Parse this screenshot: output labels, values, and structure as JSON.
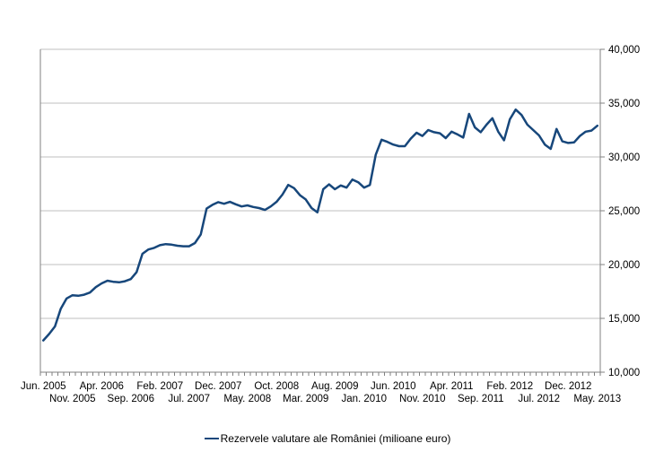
{
  "chart_data": {
    "type": "line",
    "title": "",
    "legend_position": "bottom",
    "grid": true,
    "colors": {
      "series": "#17477B",
      "gridline": "#BFBFBF",
      "axis": "#808080",
      "text": "#000000",
      "background": "#FFFFFF"
    },
    "y_axis": {
      "side": "right",
      "min": 10000,
      "max": 40000,
      "step": 5000,
      "tick_labels": [
        "10,000",
        "15,000",
        "20,000",
        "25,000",
        "30,000",
        "35,000",
        "40,000"
      ]
    },
    "x_axis": {
      "start_month": "Jun. 2005",
      "end_month": "May. 2013",
      "months_count": 96
    },
    "x_ticks": [
      {
        "label": "Jun. 2005",
        "index": 0,
        "row": 1
      },
      {
        "label": "Nov. 2005",
        "index": 5,
        "row": 2
      },
      {
        "label": "Apr. 2006",
        "index": 10,
        "row": 1
      },
      {
        "label": "Sep. 2006",
        "index": 15,
        "row": 2
      },
      {
        "label": "Feb. 2007",
        "index": 20,
        "row": 1
      },
      {
        "label": "Jul. 2007",
        "index": 25,
        "row": 2
      },
      {
        "label": "Dec. 2007",
        "index": 30,
        "row": 1
      },
      {
        "label": "May. 2008",
        "index": 35,
        "row": 2
      },
      {
        "label": "Oct. 2008",
        "index": 40,
        "row": 1
      },
      {
        "label": "Mar. 2009",
        "index": 45,
        "row": 2
      },
      {
        "label": "Aug. 2009",
        "index": 50,
        "row": 1
      },
      {
        "label": "Jan. 2010",
        "index": 55,
        "row": 2
      },
      {
        "label": "Jun. 2010",
        "index": 60,
        "row": 1
      },
      {
        "label": "Nov. 2010",
        "index": 65,
        "row": 2
      },
      {
        "label": "Apr. 2011",
        "index": 70,
        "row": 1
      },
      {
        "label": "Sep. 2011",
        "index": 75,
        "row": 2
      },
      {
        "label": "Feb. 2012",
        "index": 80,
        "row": 1
      },
      {
        "label": "Jul. 2012",
        "index": 85,
        "row": 2
      },
      {
        "label": "Dec. 2012",
        "index": 90,
        "row": 1
      },
      {
        "label": "May. 2013",
        "index": 95,
        "row": 2
      }
    ],
    "series": [
      {
        "name": "Rezervele valutare ale României (milioane euro)",
        "color": "#17477B",
        "values": [
          12950,
          13550,
          14250,
          15900,
          16850,
          17150,
          17100,
          17200,
          17400,
          17900,
          18250,
          18500,
          18400,
          18350,
          18450,
          18650,
          19300,
          21000,
          21400,
          21550,
          21800,
          21900,
          21850,
          21750,
          21700,
          21700,
          22000,
          22800,
          25200,
          25550,
          25800,
          25650,
          25830,
          25600,
          25400,
          25500,
          25350,
          25250,
          25080,
          25400,
          25830,
          26500,
          27400,
          27100,
          26450,
          26050,
          25250,
          24850,
          27000,
          27450,
          27000,
          27350,
          27150,
          27900,
          27650,
          27150,
          27400,
          30200,
          31600,
          31400,
          31150,
          31000,
          31000,
          31700,
          32250,
          31950,
          32500,
          32300,
          32200,
          31750,
          32350,
          32100,
          31800,
          34000,
          32750,
          32300,
          33000,
          33600,
          32350,
          31550,
          33500,
          34400,
          33900,
          33000,
          32500,
          32000,
          31150,
          30750,
          32600,
          31450,
          31300,
          31350,
          31950,
          32350,
          32450,
          32900
        ]
      }
    ]
  }
}
